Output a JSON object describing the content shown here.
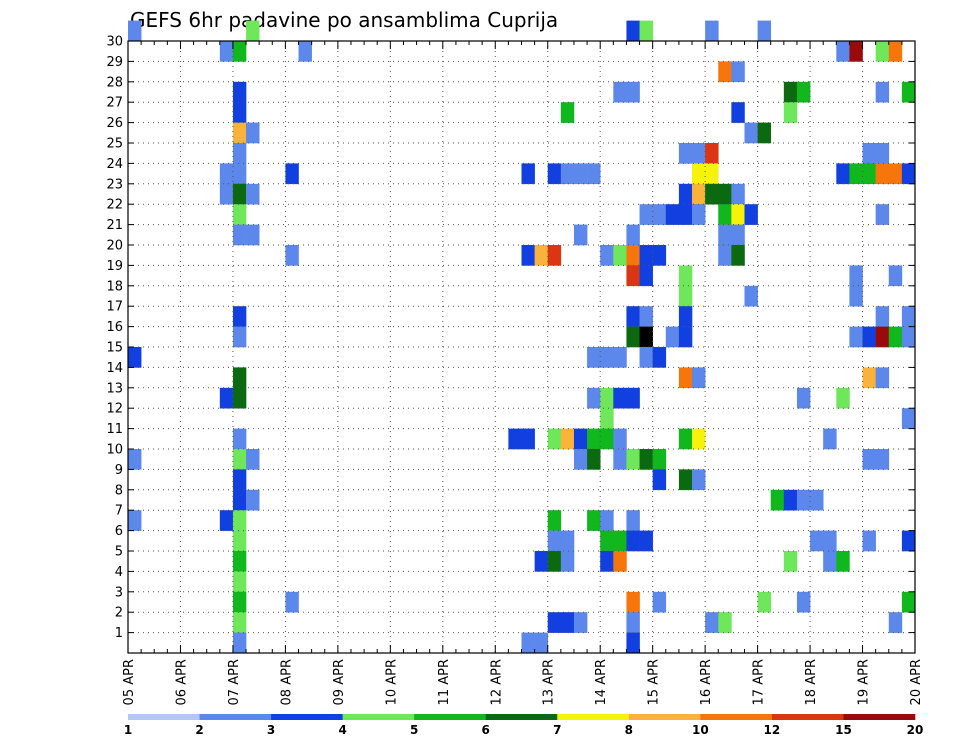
{
  "chart_data": {
    "type": "heatmap",
    "title": "GEFS 6hr padavine po ansamblima Cuprija",
    "x_tick_labels": [
      "05 APR",
      "06 APR",
      "07 APR",
      "08 APR",
      "09 APR",
      "10 APR",
      "11 APR",
      "12 APR",
      "13 APR",
      "14 APR",
      "15 APR",
      "16 APR",
      "17 APR",
      "18 APR",
      "19 APR",
      "20 APR"
    ],
    "y_tick_labels": [
      "1",
      "2",
      "3",
      "4",
      "5",
      "6",
      "7",
      "8",
      "9",
      "10",
      "11",
      "12",
      "13",
      "14",
      "15",
      "16",
      "17",
      "18",
      "19",
      "20",
      "21",
      "22",
      "23",
      "24",
      "25",
      "26",
      "27",
      "28",
      "29",
      "30"
    ],
    "ylim": [
      0,
      30
    ],
    "xlim": [
      0,
      60
    ],
    "x_unit": "6-hour steps from 05 APR 00Z",
    "grid": true,
    "legend_position": "bottom",
    "legend_labels": [
      "1",
      "2",
      "3",
      "4",
      "5",
      "6",
      "7",
      "8",
      "10",
      "12",
      "15",
      "20"
    ],
    "legend_colors": [
      "#b3c6f7",
      "#5b88ea",
      "#1240e0",
      "#6ee85a",
      "#10b81e",
      "#0b6a10",
      "#f7f20a",
      "#f9b23a",
      "#f7760c",
      "#dc3514",
      "#9a0a0a"
    ],
    "cells": [
      [
        0,
        30,
        1
      ],
      [
        9,
        30,
        3
      ],
      [
        38,
        30,
        2
      ],
      [
        39,
        30,
        3
      ],
      [
        44,
        30,
        1
      ],
      [
        48,
        30,
        1
      ],
      [
        7,
        29,
        1
      ],
      [
        8,
        29,
        4
      ],
      [
        13,
        29,
        1
      ],
      [
        54,
        29,
        1
      ],
      [
        55,
        29,
        10
      ],
      [
        57,
        29,
        3
      ],
      [
        58,
        29,
        8
      ],
      [
        45,
        28,
        8
      ],
      [
        46,
        28,
        1
      ],
      [
        8,
        27,
        2
      ],
      [
        37,
        27,
        1
      ],
      [
        38,
        27,
        1
      ],
      [
        50,
        27,
        5
      ],
      [
        51,
        27,
        4
      ],
      [
        57,
        27,
        1
      ],
      [
        59,
        27,
        4
      ],
      [
        8,
        26,
        2
      ],
      [
        33,
        26,
        4
      ],
      [
        46,
        26,
        2
      ],
      [
        50,
        26,
        3
      ],
      [
        8,
        25,
        7
      ],
      [
        9,
        25,
        1
      ],
      [
        47,
        25,
        1
      ],
      [
        48,
        25,
        5
      ],
      [
        8,
        24,
        1
      ],
      [
        42,
        24,
        1
      ],
      [
        43,
        24,
        1
      ],
      [
        44,
        24,
        9
      ],
      [
        56,
        24,
        1
      ],
      [
        57,
        24,
        1
      ],
      [
        7,
        23,
        1
      ],
      [
        8,
        23,
        1
      ],
      [
        12,
        23,
        2
      ],
      [
        30,
        23,
        2
      ],
      [
        32,
        23,
        2
      ],
      [
        33,
        23,
        1
      ],
      [
        34,
        23,
        1
      ],
      [
        35,
        23,
        1
      ],
      [
        43,
        23,
        6
      ],
      [
        44,
        23,
        6
      ],
      [
        54,
        23,
        2
      ],
      [
        55,
        23,
        4
      ],
      [
        56,
        23,
        4
      ],
      [
        57,
        23,
        8
      ],
      [
        58,
        23,
        8
      ],
      [
        59,
        23,
        2
      ],
      [
        7,
        22,
        1
      ],
      [
        8,
        22,
        5
      ],
      [
        9,
        22,
        1
      ],
      [
        42,
        22,
        2
      ],
      [
        43,
        22,
        7
      ],
      [
        44,
        22,
        5
      ],
      [
        45,
        22,
        5
      ],
      [
        46,
        22,
        1
      ],
      [
        8,
        21,
        3
      ],
      [
        39,
        21,
        1
      ],
      [
        40,
        21,
        1
      ],
      [
        41,
        21,
        2
      ],
      [
        42,
        21,
        2
      ],
      [
        43,
        21,
        1
      ],
      [
        45,
        21,
        4
      ],
      [
        46,
        21,
        6
      ],
      [
        47,
        21,
        2
      ],
      [
        57,
        21,
        1
      ],
      [
        8,
        20,
        1
      ],
      [
        9,
        20,
        1
      ],
      [
        34,
        20,
        1
      ],
      [
        38,
        20,
        1
      ],
      [
        45,
        20,
        1
      ],
      [
        46,
        20,
        1
      ],
      [
        12,
        19,
        1
      ],
      [
        30,
        19,
        2
      ],
      [
        31,
        19,
        7
      ],
      [
        32,
        19,
        9
      ],
      [
        36,
        19,
        1
      ],
      [
        37,
        19,
        3
      ],
      [
        38,
        19,
        8
      ],
      [
        39,
        19,
        2
      ],
      [
        40,
        19,
        2
      ],
      [
        45,
        19,
        1
      ],
      [
        46,
        19,
        5
      ],
      [
        38,
        18,
        9
      ],
      [
        39,
        18,
        2
      ],
      [
        42,
        18,
        3
      ],
      [
        55,
        18,
        1
      ],
      [
        58,
        18,
        1
      ],
      [
        42,
        17,
        3
      ],
      [
        47,
        17,
        1
      ],
      [
        55,
        17,
        1
      ],
      [
        8,
        16,
        2
      ],
      [
        38,
        16,
        2
      ],
      [
        39,
        16,
        1
      ],
      [
        42,
        16,
        2
      ],
      [
        57,
        16,
        1
      ],
      [
        59,
        16,
        1
      ],
      [
        8,
        15,
        1
      ],
      [
        38,
        15,
        5
      ],
      [
        39,
        15,
        11
      ],
      [
        41,
        15,
        1
      ],
      [
        42,
        15,
        2
      ],
      [
        55,
        15,
        1
      ],
      [
        56,
        15,
        2
      ],
      [
        57,
        15,
        10
      ],
      [
        58,
        15,
        4
      ],
      [
        59,
        15,
        1
      ],
      [
        0,
        14,
        2
      ],
      [
        35,
        14,
        1
      ],
      [
        36,
        14,
        1
      ],
      [
        37,
        14,
        1
      ],
      [
        39,
        14,
        1
      ],
      [
        40,
        14,
        2
      ],
      [
        8,
        13,
        5
      ],
      [
        42,
        13,
        8
      ],
      [
        43,
        13,
        1
      ],
      [
        56,
        13,
        7
      ],
      [
        57,
        13,
        1
      ],
      [
        7,
        12,
        2
      ],
      [
        8,
        12,
        5
      ],
      [
        35,
        12,
        1
      ],
      [
        36,
        12,
        3
      ],
      [
        37,
        12,
        2
      ],
      [
        38,
        12,
        2
      ],
      [
        51,
        12,
        1
      ],
      [
        54,
        12,
        3
      ],
      [
        36,
        11,
        3
      ],
      [
        59,
        11,
        1
      ],
      [
        8,
        10,
        1
      ],
      [
        29,
        10,
        2
      ],
      [
        30,
        10,
        2
      ],
      [
        32,
        10,
        3
      ],
      [
        33,
        10,
        7
      ],
      [
        34,
        10,
        2
      ],
      [
        35,
        10,
        4
      ],
      [
        36,
        10,
        4
      ],
      [
        37,
        10,
        1
      ],
      [
        42,
        10,
        4
      ],
      [
        43,
        10,
        6
      ],
      [
        53,
        10,
        1
      ],
      [
        0,
        9,
        1
      ],
      [
        8,
        9,
        3
      ],
      [
        9,
        9,
        1
      ],
      [
        34,
        9,
        1
      ],
      [
        35,
        9,
        5
      ],
      [
        37,
        9,
        1
      ],
      [
        38,
        9,
        3
      ],
      [
        39,
        9,
        5
      ],
      [
        40,
        9,
        4
      ],
      [
        56,
        9,
        1
      ],
      [
        57,
        9,
        1
      ],
      [
        8,
        8,
        2
      ],
      [
        40,
        8,
        2
      ],
      [
        42,
        8,
        5
      ],
      [
        43,
        8,
        1
      ],
      [
        8,
        7,
        2
      ],
      [
        9,
        7,
        1
      ],
      [
        49,
        7,
        4
      ],
      [
        50,
        7,
        2
      ],
      [
        51,
        7,
        1
      ],
      [
        52,
        7,
        1
      ],
      [
        0,
        6,
        1
      ],
      [
        7,
        6,
        2
      ],
      [
        8,
        6,
        3
      ],
      [
        32,
        6,
        4
      ],
      [
        35,
        6,
        4
      ],
      [
        36,
        6,
        1
      ],
      [
        38,
        6,
        1
      ],
      [
        8,
        5,
        3
      ],
      [
        32,
        5,
        1
      ],
      [
        33,
        5,
        1
      ],
      [
        36,
        5,
        4
      ],
      [
        37,
        5,
        4
      ],
      [
        38,
        5,
        2
      ],
      [
        39,
        5,
        2
      ],
      [
        52,
        5,
        1
      ],
      [
        53,
        5,
        1
      ],
      [
        56,
        5,
        1
      ],
      [
        59,
        5,
        2
      ],
      [
        8,
        4,
        4
      ],
      [
        31,
        4,
        2
      ],
      [
        32,
        4,
        5
      ],
      [
        33,
        4,
        1
      ],
      [
        36,
        4,
        2
      ],
      [
        37,
        4,
        8
      ],
      [
        50,
        4,
        3
      ],
      [
        53,
        4,
        1
      ],
      [
        54,
        4,
        4
      ],
      [
        8,
        3,
        3
      ],
      [
        8,
        2,
        4
      ],
      [
        12,
        2,
        1
      ],
      [
        38,
        2,
        8
      ],
      [
        40,
        2,
        1
      ],
      [
        48,
        2,
        3
      ],
      [
        51,
        2,
        1
      ],
      [
        59,
        2,
        4
      ],
      [
        8,
        1,
        3
      ],
      [
        32,
        1,
        2
      ],
      [
        33,
        1,
        2
      ],
      [
        34,
        1,
        1
      ],
      [
        38,
        1,
        1
      ],
      [
        44,
        1,
        1
      ],
      [
        45,
        1,
        3
      ],
      [
        58,
        1,
        1
      ],
      [
        8,
        0,
        1
      ],
      [
        30,
        0,
        1
      ],
      [
        31,
        0,
        1
      ],
      [
        38,
        0,
        2
      ]
    ]
  }
}
